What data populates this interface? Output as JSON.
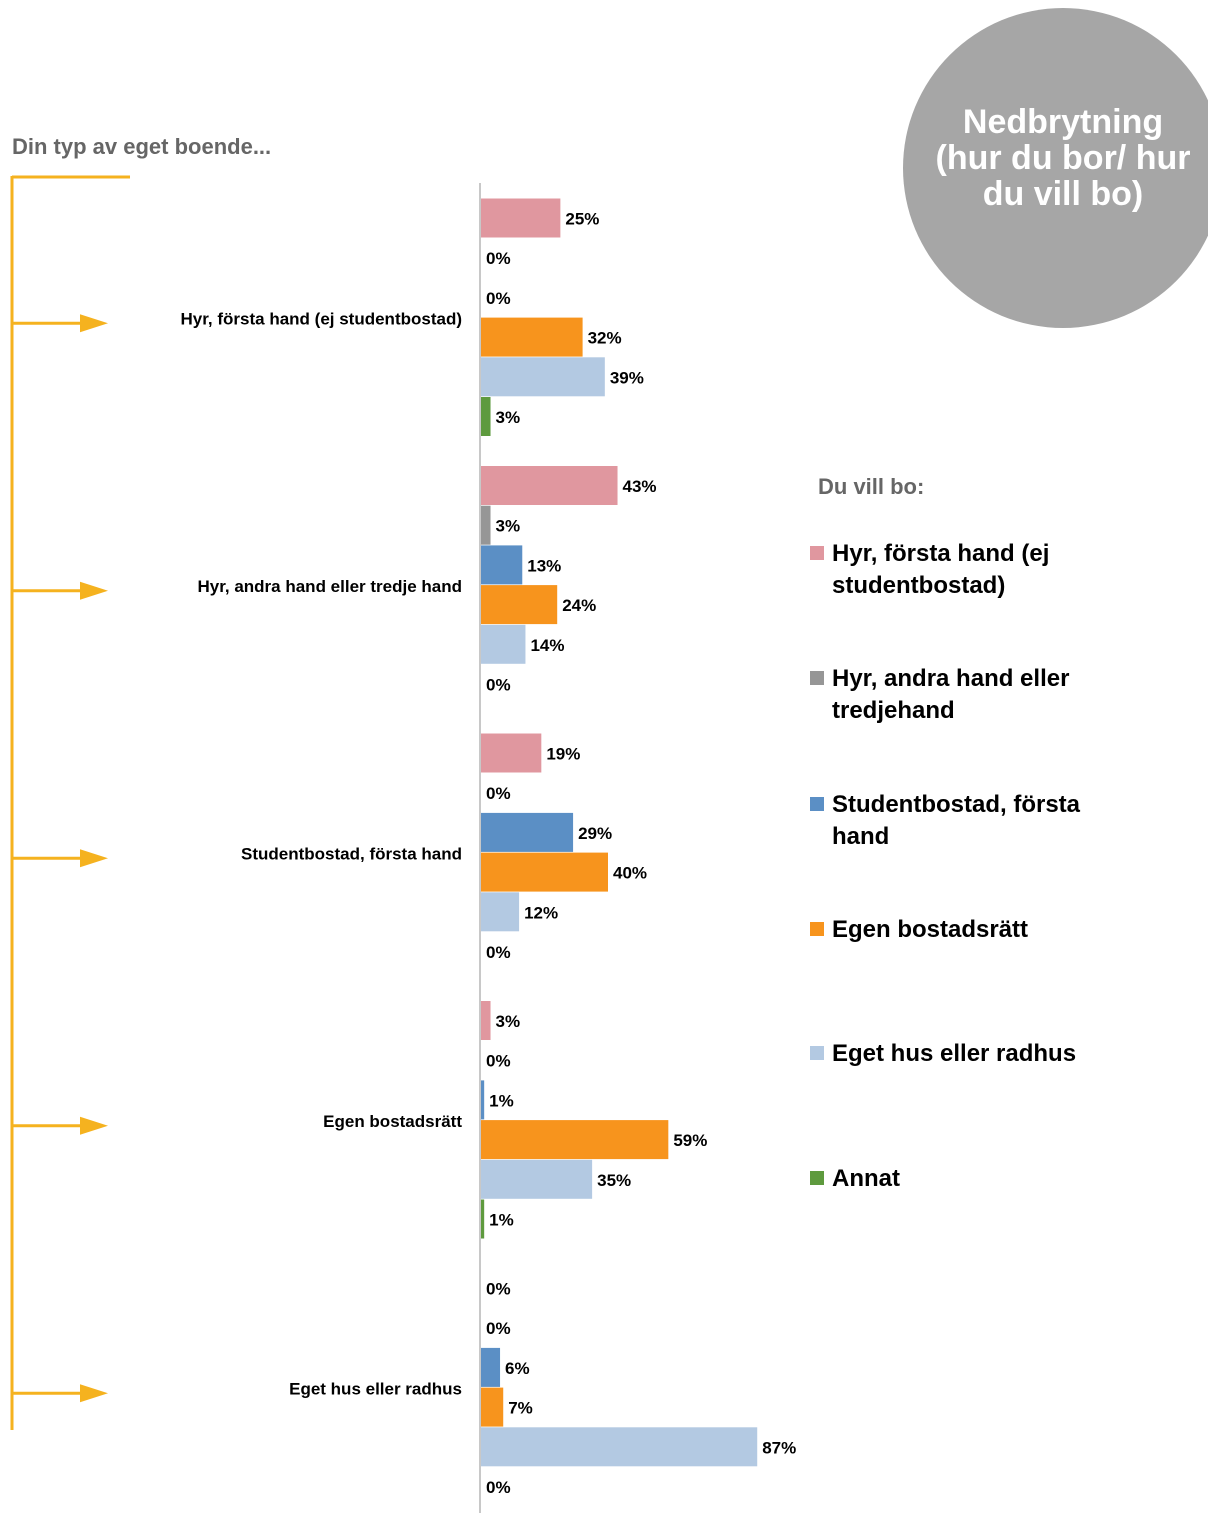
{
  "title": "Din typ av eget boende...",
  "badge": "Nedbrytning (hur du bor/ hur du vill bo)",
  "chart_data": {
    "type": "bar",
    "orientation": "horizontal",
    "legend_title": "Du vill bo:",
    "categories": [
      "Hyr, första hand (ej studentbostad)",
      "Hyr, andra hand eller tredje hand",
      "Studentbostad, första hand",
      "Egen bostadsrätt",
      "Eget hus eller radhus"
    ],
    "series": [
      {
        "name": "Hyr, första hand (ej studentbostad)",
        "color": "#e0979f",
        "values": [
          25,
          43,
          19,
          3,
          0
        ],
        "value_labels": [
          "25%",
          "43%",
          "19%",
          "3%",
          "0%"
        ]
      },
      {
        "name": "Hyr, andra hand eller tredjehand",
        "color": "#969696",
        "values": [
          0,
          3,
          0,
          0,
          0
        ],
        "value_labels": [
          "0%",
          "3%",
          "0%",
          "0%",
          "0%"
        ]
      },
      {
        "name": "Studentbostad, första hand",
        "color": "#5b8fc5",
        "values": [
          0,
          13,
          29,
          1,
          6
        ],
        "value_labels": [
          "0%",
          "13%",
          "29%",
          "1%",
          "6%"
        ]
      },
      {
        "name": "Egen bostadsrätt",
        "color": "#f7941d",
        "values": [
          32,
          24,
          40,
          59,
          7
        ],
        "value_labels": [
          "32%",
          "24%",
          "40%",
          "59%",
          "7%"
        ]
      },
      {
        "name": "Eget hus eller radhus",
        "color": "#b3c9e2",
        "values": [
          39,
          14,
          12,
          35,
          87
        ],
        "value_labels": [
          "39%",
          "14%",
          "12%",
          "35%",
          "87%"
        ]
      },
      {
        "name": "Annat",
        "color": "#5e9a3e",
        "values": [
          3,
          0,
          0,
          1,
          0
        ],
        "value_labels": [
          "3%",
          "0%",
          "0%",
          "1%",
          "0%"
        ]
      }
    ]
  }
}
